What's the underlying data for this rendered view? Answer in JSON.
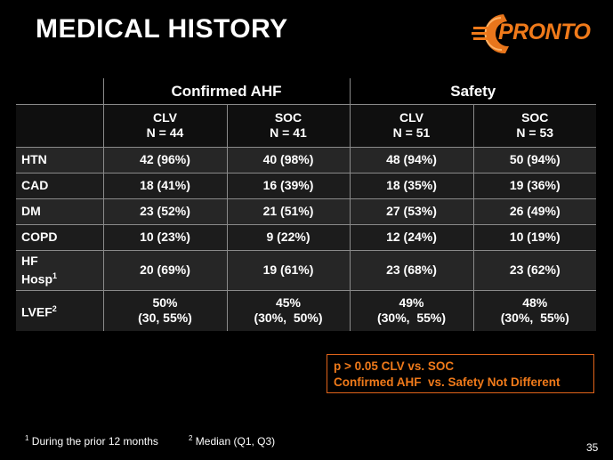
{
  "slide": {
    "title": "MEDICAL HISTORY",
    "logo_text": "PRONTO",
    "page_number": "35",
    "colors": {
      "background": "#000000",
      "accent": "#f07a1a",
      "grid": "#8a8a8a"
    }
  },
  "table": {
    "groups": [
      "Confirmed AHF",
      "Safety"
    ],
    "columns": [
      {
        "arm": "CLV",
        "n": "N = 44"
      },
      {
        "arm": "SOC",
        "n": "N = 41"
      },
      {
        "arm": "CLV",
        "n": "N = 51"
      },
      {
        "arm": "SOC",
        "n": "N = 53"
      }
    ],
    "rows": [
      {
        "label": "HTN",
        "values": [
          "42 (96%)",
          "40 (98%)",
          "48 (94%)",
          "50 (94%)"
        ]
      },
      {
        "label": "CAD",
        "values": [
          "18 (41%)",
          "16 (39%)",
          "18 (35%)",
          "19 (36%)"
        ]
      },
      {
        "label": "DM",
        "values": [
          "23 (52%)",
          "21 (51%)",
          "27 (53%)",
          "26 (49%)"
        ]
      },
      {
        "label": "COPD",
        "values": [
          "10 (23%)",
          "9 (22%)",
          "12 (24%)",
          "10 (19%)"
        ]
      },
      {
        "label": "HF",
        "label2": "Hosp",
        "sup": "1",
        "values": [
          "20 (69%)",
          "19 (61%)",
          "23 (68%)",
          "23 (62%)"
        ]
      },
      {
        "label": "LVEF",
        "sup": "2",
        "values": [
          "50%",
          "45%",
          "49%",
          "48%"
        ],
        "ranges": [
          "(30, 55%)",
          "(30%,  50%)",
          "(30%,  55%)",
          "(30%,  55%)"
        ]
      }
    ]
  },
  "note": {
    "line1": "p > 0.05 CLV vs. SOC",
    "line2": "Confirmed AHF  vs. Safety Not Different"
  },
  "footnotes": [
    {
      "num": "1",
      "text": "During the prior 12 months"
    },
    {
      "num": "2",
      "text": "Median (Q1, Q3)"
    }
  ]
}
